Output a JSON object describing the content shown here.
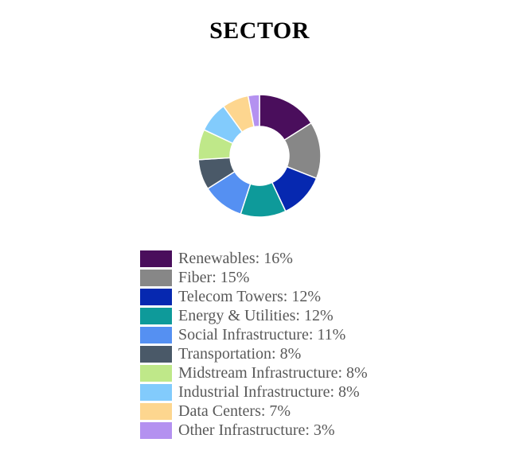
{
  "chart_data": {
    "type": "pie",
    "title": "SECTOR",
    "donut": true,
    "legend_position": "bottom",
    "categories": [
      "Renewables",
      "Fiber",
      "Telecom Towers",
      "Energy & Utilities",
      "Social Infrastructure",
      "Transportation",
      "Midstream Infrastructure",
      "Industrial Infrastructure",
      "Data Centers",
      "Other Infrastructure"
    ],
    "values": [
      16,
      15,
      12,
      12,
      11,
      8,
      8,
      8,
      7,
      3
    ],
    "unit": "%",
    "colors": [
      "#4a0e5c",
      "#878787",
      "#0628b0",
      "#0e9a9a",
      "#5590f2",
      "#4a5968",
      "#bfe889",
      "#82cbfc",
      "#fdd68f",
      "#b491f0"
    ],
    "legend_labels": [
      "Renewables: 16%",
      "Fiber: 15%",
      "Telecom Towers: 12%",
      "Energy & Utilities: 12%",
      "Social Infrastructure: 11%",
      "Transportation: 8%",
      "Midstream Infrastructure: 8%",
      "Industrial Infrastructure: 8%",
      "Data Centers: 7%",
      "Other Infrastructure: 3%"
    ]
  }
}
